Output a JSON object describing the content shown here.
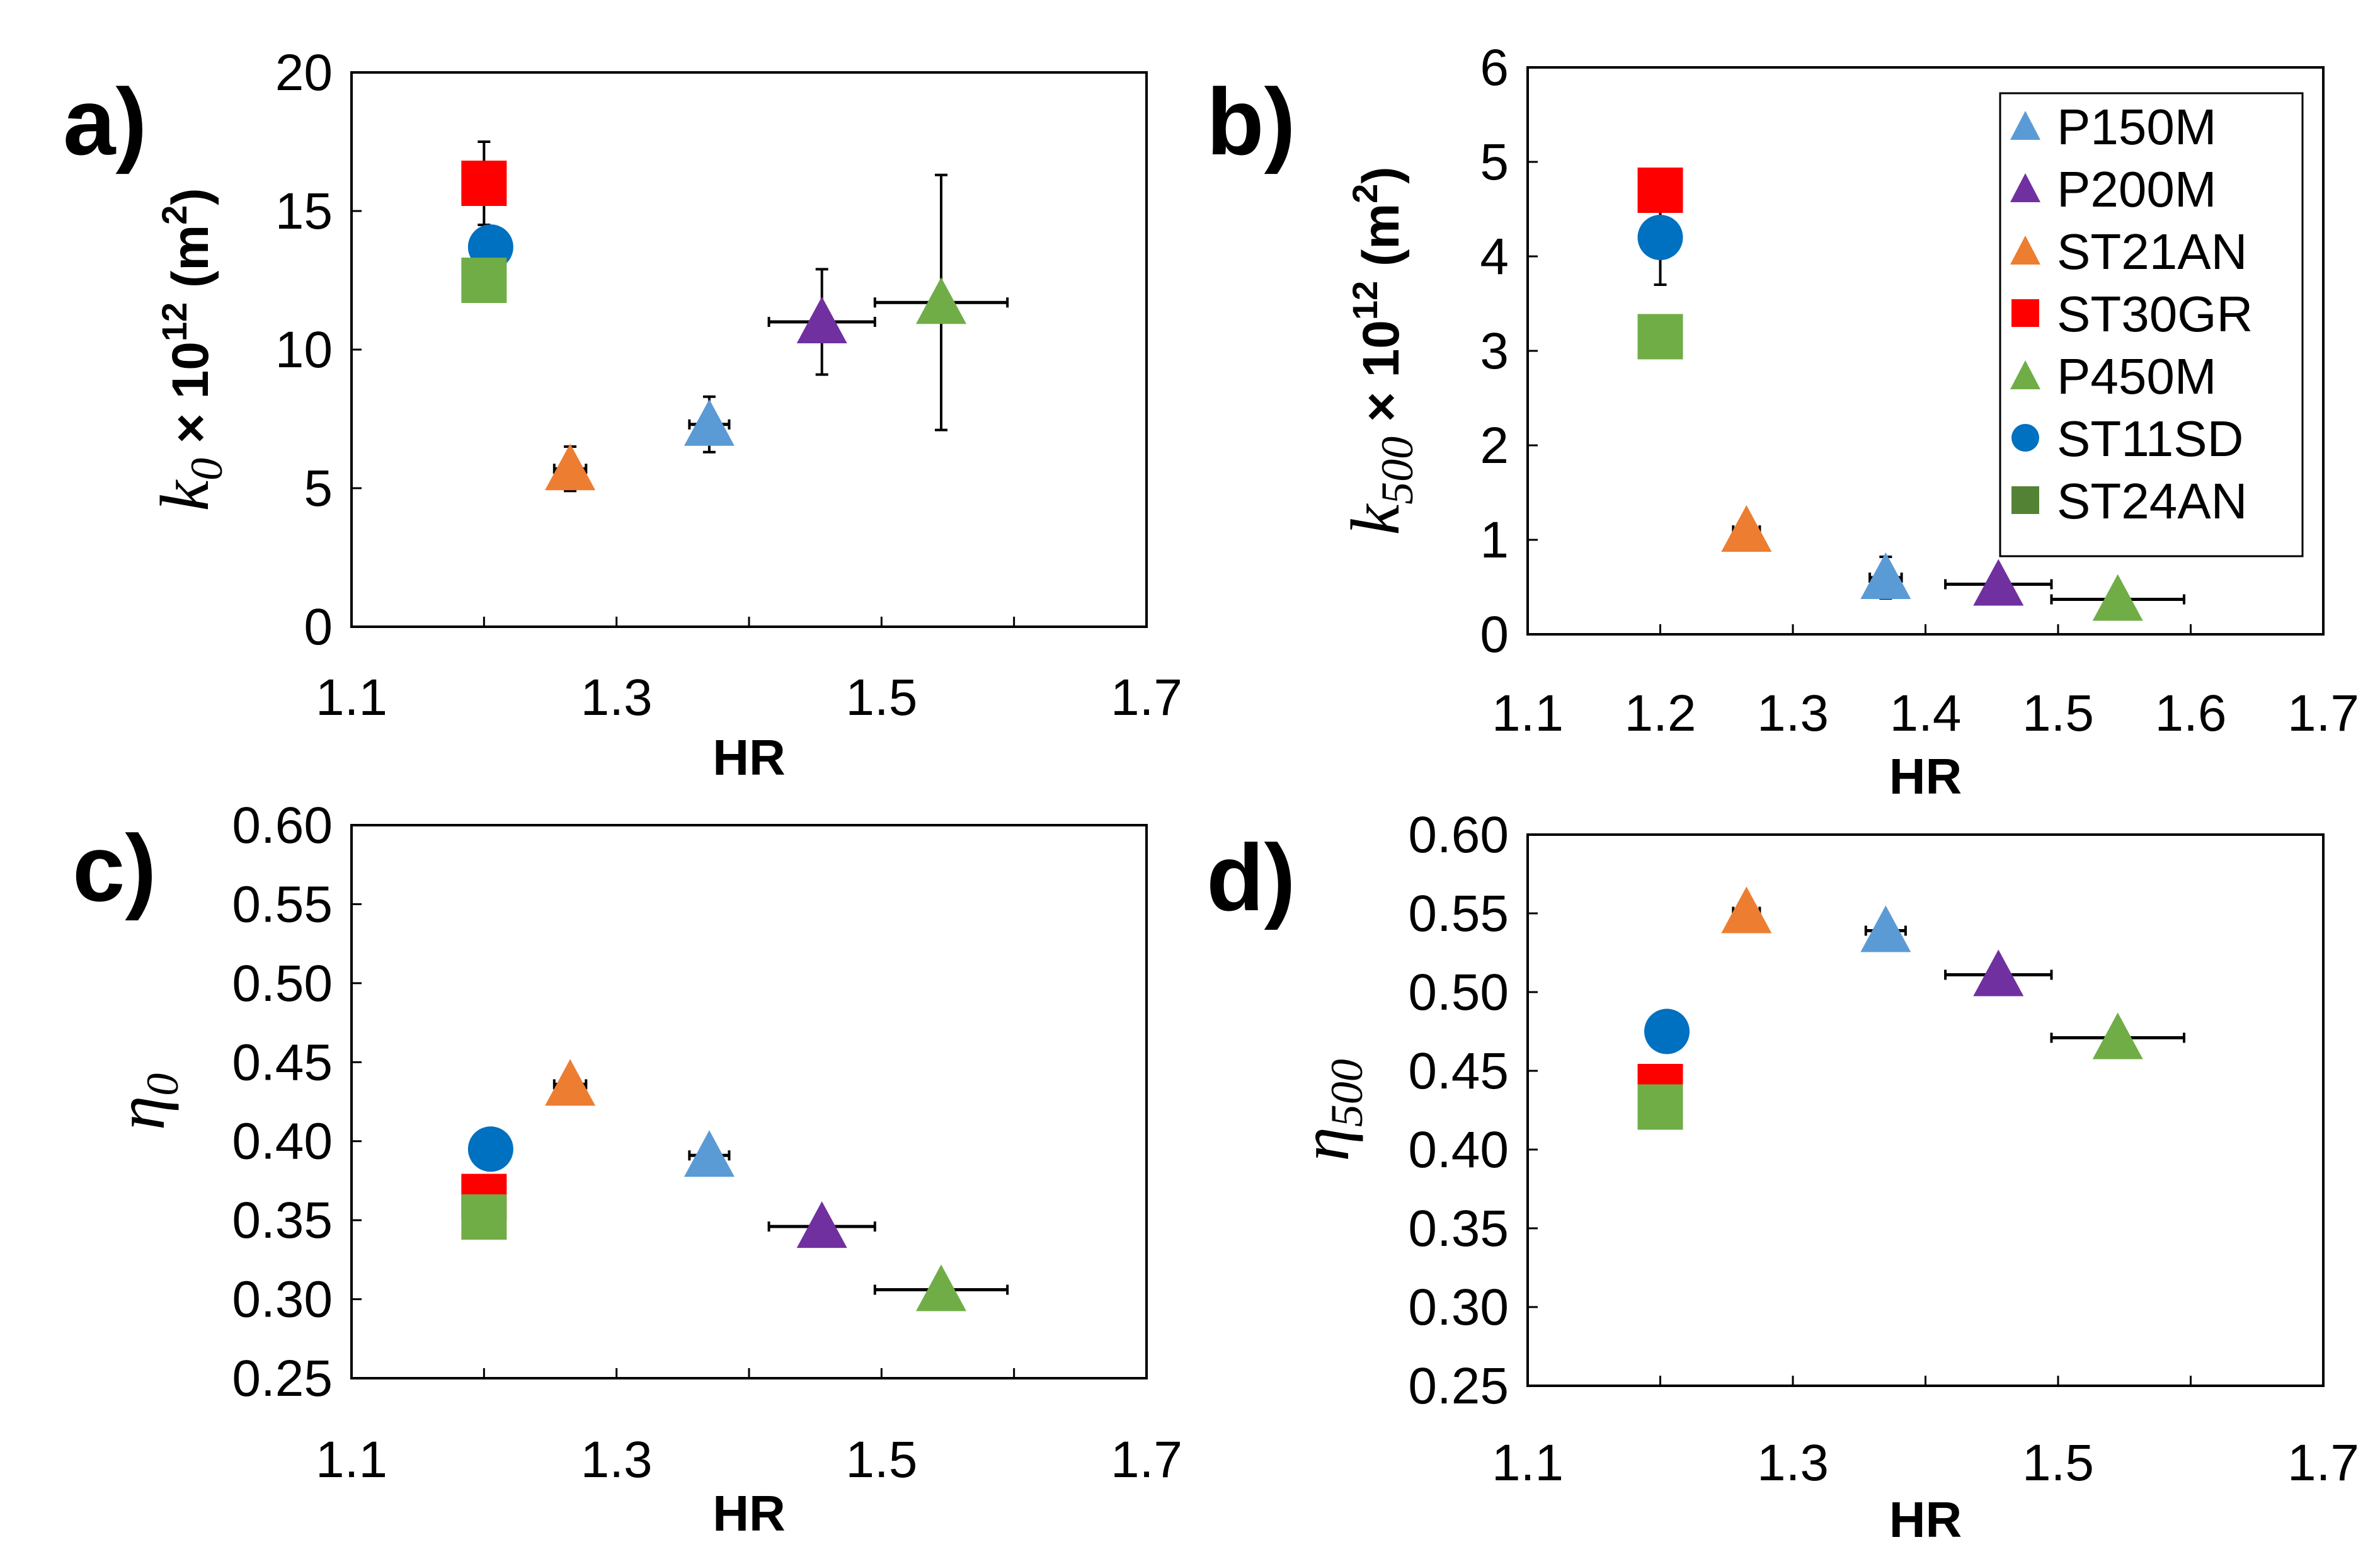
{
  "colors": {
    "P150M": "#5B9BD5",
    "P200M": "#7030A0",
    "ST21AN": "#ED7D31",
    "ST30GR": "#FF0000",
    "P450M": "#70AD47",
    "ST11SD": "#0070C0",
    "ST24AN": "#70AD47"
  },
  "legend": {
    "placement": "top-right of panel b",
    "entries": [
      {
        "name": "P150M",
        "marker": "triangle"
      },
      {
        "name": "P200M",
        "marker": "triangle"
      },
      {
        "name": "ST21AN",
        "marker": "triangle"
      },
      {
        "name": "ST30GR",
        "marker": "square"
      },
      {
        "name": "P450M",
        "marker": "triangle"
      },
      {
        "name": "ST11SD",
        "marker": "circle"
      },
      {
        "name": "ST24AN",
        "marker": "square"
      }
    ]
  },
  "chart_data": [
    {
      "panel_label": "a)",
      "type": "scatter",
      "xlabel": "HR",
      "ylabel": {
        "var": "k",
        "sub": "0",
        "rest": " × 10",
        "sup": "12",
        "unit_open": " (m",
        "unit_sup": "2",
        "unit_close": ")"
      },
      "xlim": [
        1.1,
        1.7
      ],
      "ylim": [
        0,
        20
      ],
      "xticks": [
        "1.1",
        "1.3",
        "1.5",
        "1.7"
      ],
      "yticks": [
        "0",
        "5",
        "10",
        "15",
        "20"
      ],
      "grid": false,
      "series": [
        {
          "name": "ST21AN",
          "x": 1.265,
          "y": 5.7,
          "xerr": 0.012,
          "yerr": 0.8
        },
        {
          "name": "P150M",
          "x": 1.37,
          "y": 7.3,
          "xerr": 0.015,
          "yerr": 1.0
        },
        {
          "name": "P200M",
          "x": 1.455,
          "y": 11.0,
          "xerr": 0.04,
          "yerr": 1.9
        },
        {
          "name": "P450M",
          "x": 1.545,
          "y": 11.7,
          "xerr": 0.05,
          "yerr": 4.6
        },
        {
          "name": "ST30GR",
          "x": 1.2,
          "y": 16.0,
          "xerr": 0,
          "yerr": 1.5
        },
        {
          "name": "ST11SD",
          "x": 1.205,
          "y": 13.7,
          "xerr": 0,
          "yerr": 0
        },
        {
          "name": "ST24AN",
          "x": 1.2,
          "y": 12.5,
          "xerr": 0,
          "yerr": 0
        }
      ]
    },
    {
      "panel_label": "b)",
      "type": "scatter",
      "xlabel": "HR",
      "ylabel": {
        "var": "k",
        "sub": "500",
        "rest": " × 10",
        "sup": "12",
        "unit_open": " (m",
        "unit_sup": "2",
        "unit_close": ")"
      },
      "xlim": [
        1.1,
        1.7
      ],
      "ylim": [
        0,
        6
      ],
      "xticks": [
        "1.1",
        "1.2",
        "1.3",
        "1.4",
        "1.5",
        "1.6",
        "1.7"
      ],
      "yticks": [
        "0",
        "1",
        "2",
        "3",
        "4",
        "5",
        "6"
      ],
      "grid": false,
      "series": [
        {
          "name": "ST21AN",
          "x": 1.265,
          "y": 1.1,
          "xerr": 0.01,
          "yerr": 0.05
        },
        {
          "name": "P150M",
          "x": 1.37,
          "y": 0.6,
          "xerr": 0.012,
          "yerr": 0.22
        },
        {
          "name": "P200M",
          "x": 1.455,
          "y": 0.53,
          "xerr": 0.04,
          "yerr": 0
        },
        {
          "name": "P450M",
          "x": 1.545,
          "y": 0.37,
          "xerr": 0.05,
          "yerr": 0
        },
        {
          "name": "ST30GR",
          "x": 1.2,
          "y": 4.7,
          "xerr": 0,
          "yerr": 0
        },
        {
          "name": "ST11SD",
          "x": 1.2,
          "y": 4.2,
          "xerr": 0,
          "yerr": 0.5
        },
        {
          "name": "ST24AN",
          "x": 1.2,
          "y": 3.15,
          "xerr": 0,
          "yerr": 0
        }
      ]
    },
    {
      "panel_label": "c)",
      "type": "scatter",
      "xlabel": "HR",
      "ylabel": {
        "var": "η",
        "sub": "0"
      },
      "xlim": [
        1.1,
        1.7
      ],
      "ylim": [
        0.25,
        0.6
      ],
      "xticks": [
        "1.1",
        "1.3",
        "1.5",
        "1.7"
      ],
      "yticks": [
        "0.25",
        "0.30",
        "0.35",
        "0.40",
        "0.45",
        "0.50",
        "0.55",
        "0.60"
      ],
      "grid": false,
      "series": [
        {
          "name": "ST21AN",
          "x": 1.265,
          "y": 0.436,
          "xerr": 0.012,
          "yerr": 0
        },
        {
          "name": "P150M",
          "x": 1.37,
          "y": 0.391,
          "xerr": 0.015,
          "yerr": 0
        },
        {
          "name": "P200M",
          "x": 1.455,
          "y": 0.346,
          "xerr": 0.04,
          "yerr": 0
        },
        {
          "name": "P450M",
          "x": 1.545,
          "y": 0.306,
          "xerr": 0.05,
          "yerr": 0
        },
        {
          "name": "ST30GR",
          "x": 1.2,
          "y": 0.365,
          "xerr": 0,
          "yerr": 0
        },
        {
          "name": "ST11SD",
          "x": 1.205,
          "y": 0.395,
          "xerr": 0,
          "yerr": 0
        },
        {
          "name": "ST24AN",
          "x": 1.2,
          "y": 0.352,
          "xerr": 0,
          "yerr": 0
        }
      ]
    },
    {
      "panel_label": "d)",
      "type": "scatter",
      "xlabel": "HR",
      "ylabel": {
        "var": "η",
        "sub": "500"
      },
      "xlim": [
        1.1,
        1.7
      ],
      "ylim": [
        0.25,
        0.6
      ],
      "xticks": [
        "1.1",
        "1.3",
        "1.5",
        "1.7"
      ],
      "yticks": [
        "0.25",
        "0.30",
        "0.35",
        "0.40",
        "0.45",
        "0.50",
        "0.55",
        "0.60"
      ],
      "grid": false,
      "series": [
        {
          "name": "ST21AN",
          "x": 1.265,
          "y": 0.551,
          "xerr": 0.01,
          "yerr": 0
        },
        {
          "name": "P150M",
          "x": 1.37,
          "y": 0.539,
          "xerr": 0.015,
          "yerr": 0
        },
        {
          "name": "P200M",
          "x": 1.455,
          "y": 0.511,
          "xerr": 0.04,
          "yerr": 0
        },
        {
          "name": "P450M",
          "x": 1.545,
          "y": 0.471,
          "xerr": 0.05,
          "yerr": 0
        },
        {
          "name": "ST30GR",
          "x": 1.2,
          "y": 0.44,
          "xerr": 0,
          "yerr": 0
        },
        {
          "name": "ST11SD",
          "x": 1.205,
          "y": 0.475,
          "xerr": 0,
          "yerr": 0
        },
        {
          "name": "ST24AN",
          "x": 1.2,
          "y": 0.427,
          "xerr": 0,
          "yerr": 0
        }
      ]
    }
  ]
}
